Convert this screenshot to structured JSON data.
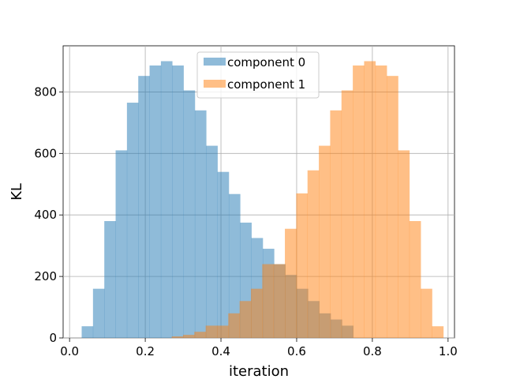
{
  "chart_data": {
    "type": "bar",
    "xlabel": "iteration",
    "ylabel": "KL",
    "xlim": [
      -0.017,
      1.017
    ],
    "ylim": [
      0,
      950
    ],
    "xticks": [
      0.0,
      0.2,
      0.4,
      0.6,
      0.8,
      1.0
    ],
    "xtick_labels": [
      "0.0",
      "0.2",
      "0.4",
      "0.6",
      "0.8",
      "1.0"
    ],
    "yticks": [
      0,
      200,
      400,
      600,
      800
    ],
    "ytick_labels": [
      "0",
      "200",
      "400",
      "600",
      "800"
    ],
    "grid": true,
    "legend_position": "top-center",
    "bin_width": 0.0299,
    "series": [
      {
        "name": "component 0",
        "color": "#1f77b4",
        "alpha": 0.5,
        "bin_start": 0.032,
        "values": [
          38,
          160,
          380,
          610,
          765,
          852,
          886,
          900,
          886,
          805,
          740,
          625,
          540,
          468,
          375,
          325,
          290,
          240,
          205,
          160,
          120,
          80,
          60,
          40
        ]
      },
      {
        "name": "component 1",
        "color": "#ff7f0e",
        "alpha": 0.5,
        "bin_start": 0.24,
        "values": [
          0,
          5,
          10,
          20,
          40,
          40,
          80,
          120,
          160,
          240,
          240,
          355,
          470,
          545,
          625,
          740,
          805,
          886,
          900,
          886,
          852,
          610,
          380,
          160,
          38
        ]
      }
    ]
  }
}
